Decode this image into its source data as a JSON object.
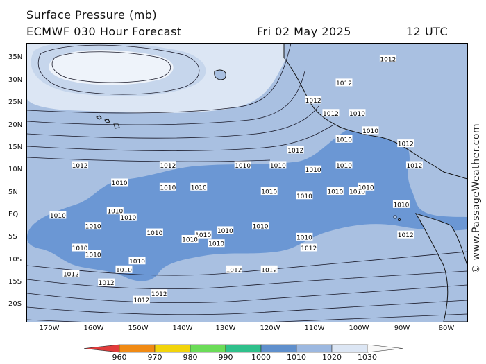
{
  "header": {
    "title": "Surface Pressure (mb)",
    "model": "ECMWF 030 Hour Forecast",
    "date": "Fri 02 May 2025",
    "time": "12 UTC"
  },
  "credit": "© www.PassageWeather.com",
  "latitude_labels": [
    "35N",
    "30N",
    "25N",
    "20N",
    "15N",
    "10N",
    "5N",
    "EQ",
    "5S",
    "10S",
    "15S",
    "20S"
  ],
  "longitude_labels": [
    "170W",
    "160W",
    "150W",
    "140W",
    "130W",
    "120W",
    "110W",
    "100W",
    "90W",
    "80W"
  ],
  "isobar_labels": [
    {
      "text": "1012",
      "lat": 10,
      "lon": -163
    },
    {
      "text": "1012",
      "lat": 10,
      "lon": -143
    },
    {
      "text": "1012",
      "lat": 13.5,
      "lon": -114
    },
    {
      "text": "1010",
      "lat": 10,
      "lon": -126
    },
    {
      "text": "1010",
      "lat": 10,
      "lon": -118
    },
    {
      "text": "1010",
      "lat": 9,
      "lon": -110
    },
    {
      "text": "1010",
      "lat": 10,
      "lon": -103
    },
    {
      "text": "1010",
      "lat": 6,
      "lon": -154
    },
    {
      "text": "1010",
      "lat": 5,
      "lon": -143
    },
    {
      "text": "1010",
      "lat": 5,
      "lon": -136
    },
    {
      "text": "1010",
      "lat": 4,
      "lon": -120
    },
    {
      "text": "1010",
      "lat": 3,
      "lon": -112
    },
    {
      "text": "1010",
      "lat": 4,
      "lon": -105
    },
    {
      "text": "1010",
      "lat": 4,
      "lon": -100
    },
    {
      "text": "1010",
      "lat": 5,
      "lon": -98
    },
    {
      "text": "1010",
      "lat": 1,
      "lon": -90
    },
    {
      "text": "1010",
      "lat": -0.5,
      "lon": -155
    },
    {
      "text": "1010",
      "lat": -1.5,
      "lon": -168
    },
    {
      "text": "1010",
      "lat": -2,
      "lon": -152
    },
    {
      "text": "1010",
      "lat": -4,
      "lon": -160
    },
    {
      "text": "1010",
      "lat": -5.5,
      "lon": -146
    },
    {
      "text": "1010",
      "lat": -5,
      "lon": -130
    },
    {
      "text": "1010",
      "lat": -6,
      "lon": -135
    },
    {
      "text": "1010",
      "lat": -7,
      "lon": -138
    },
    {
      "text": "1010",
      "lat": -8,
      "lon": -132
    },
    {
      "text": "1010",
      "lat": -6.5,
      "lon": -112
    },
    {
      "text": "1010",
      "lat": -9,
      "lon": -163
    },
    {
      "text": "1010",
      "lat": -10.5,
      "lon": -160
    },
    {
      "text": "1010",
      "lat": -12,
      "lon": -150
    },
    {
      "text": "1010",
      "lat": -14,
      "lon": -153
    },
    {
      "text": "1010",
      "lat": -4,
      "lon": -122
    },
    {
      "text": "1010",
      "lat": 22,
      "lon": -100
    },
    {
      "text": "1010",
      "lat": 18,
      "lon": -97
    },
    {
      "text": "1010",
      "lat": 16,
      "lon": -103
    },
    {
      "text": "1012",
      "lat": -9,
      "lon": -111
    },
    {
      "text": "1012",
      "lat": -15,
      "lon": -165
    },
    {
      "text": "1012",
      "lat": -14,
      "lon": -128
    },
    {
      "text": "1012",
      "lat": -14,
      "lon": -120
    },
    {
      "text": "1012",
      "lat": -17,
      "lon": -157
    },
    {
      "text": "1012",
      "lat": -19.5,
      "lon": -145
    },
    {
      "text": "1012",
      "lat": -21,
      "lon": -149
    },
    {
      "text": "1012",
      "lat": -6,
      "lon": -89
    },
    {
      "text": "1012",
      "lat": 15,
      "lon": -89
    },
    {
      "text": "1012",
      "lat": 34.5,
      "lon": -93
    },
    {
      "text": "1012",
      "lat": 29,
      "lon": -103
    },
    {
      "text": "1012",
      "lat": 25,
      "lon": -110
    },
    {
      "text": "1012",
      "lat": 22,
      "lon": -106
    },
    {
      "text": "1012",
      "lat": 10,
      "lon": -87
    }
  ],
  "legend": {
    "labels": [
      "960",
      "970",
      "980",
      "990",
      "1000",
      "1010",
      "1020",
      "1030"
    ],
    "colors": [
      "#e23b3b",
      "#f08a14",
      "#f2d40b",
      "#6bdc58",
      "#2fc08b",
      "#5f8fcc",
      "#9cb8e0",
      "#dce6f4",
      "#f8f8f8"
    ]
  },
  "colors": {
    "high": "#dce6f4",
    "mid": "#a9c0e1",
    "low": "#6b97d4",
    "land": "#a9c0e1",
    "isobar": "#1a1a2a"
  }
}
